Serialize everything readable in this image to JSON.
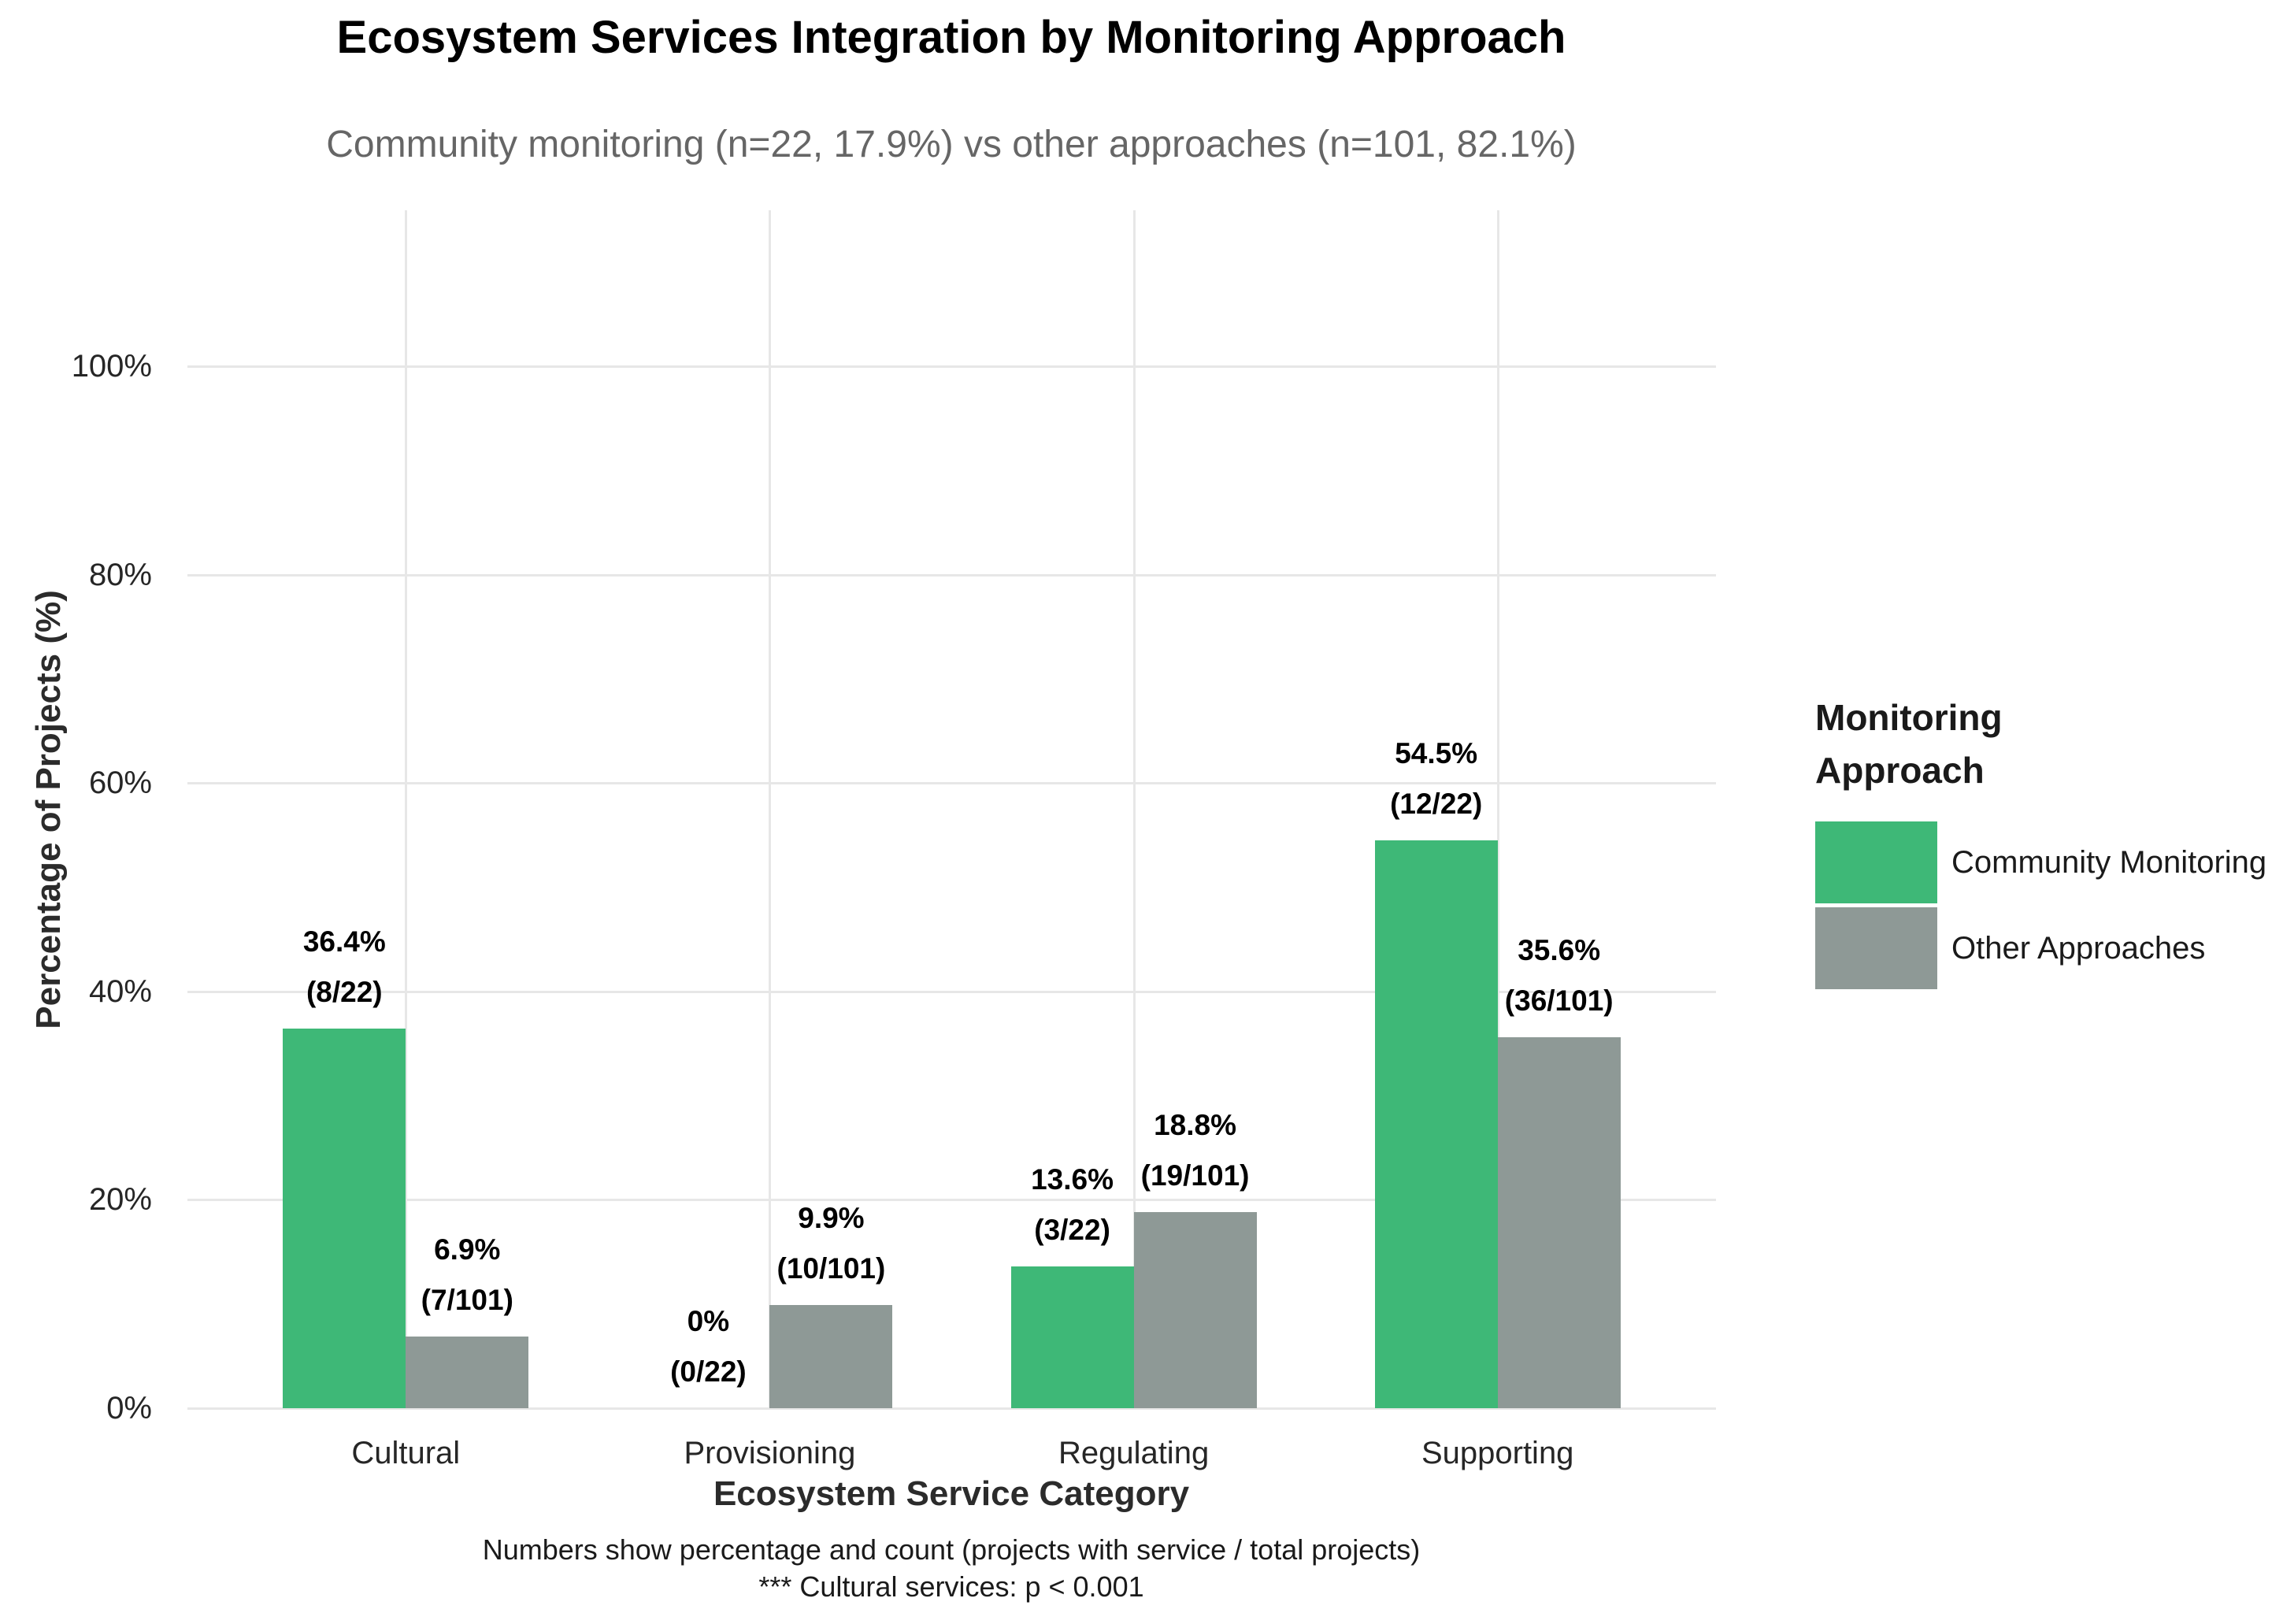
{
  "legend": {
    "title": "Monitoring\nApproach"
  },
  "caption": {
    "line1": "Numbers show percentage and count (projects with service / total projects)",
    "line2": "*** Cultural services: p < 0.001"
  },
  "chart_data": {
    "type": "bar",
    "grouped": true,
    "title": "Ecosystem Services Integration by Monitoring Approach",
    "subtitle": "Community monitoring (n=22, 17.9%) vs other approaches (n=101, 82.1%)",
    "xlabel": "Ecosystem Service Category",
    "ylabel": "Percentage of Projects (%)",
    "categories": [
      "Cultural",
      "Provisioning",
      "Regulating",
      "Supporting"
    ],
    "series": [
      {
        "name": "Community Monitoring",
        "color": "#3eb877",
        "values": [
          36.4,
          0,
          13.6,
          54.5
        ],
        "labels": [
          [
            "36.4%",
            "(8/22)"
          ],
          [
            "0%",
            "(0/22)"
          ],
          [
            "13.6%",
            "(3/22)"
          ],
          [
            "54.5%",
            "(12/22)"
          ]
        ]
      },
      {
        "name": "Other Approaches",
        "color": "#8e9996",
        "values": [
          6.9,
          9.9,
          18.8,
          35.6
        ],
        "labels": [
          [
            "6.9%",
            "(7/101)"
          ],
          [
            "9.9%",
            "(10/101)"
          ],
          [
            "18.8%",
            "(19/101)"
          ],
          [
            "35.6%",
            "(36/101)"
          ]
        ]
      }
    ],
    "y_ticks": [
      "0%",
      "20%",
      "40%",
      "60%",
      "80%",
      "100%"
    ],
    "y_tick_values": [
      0,
      20,
      40,
      60,
      80,
      100
    ],
    "ylim": [
      0,
      115
    ],
    "grid": "horizontal major lines every 20% + vertical line at each category center",
    "gridline_color": "#e7e7e7",
    "legend_position": "right"
  }
}
